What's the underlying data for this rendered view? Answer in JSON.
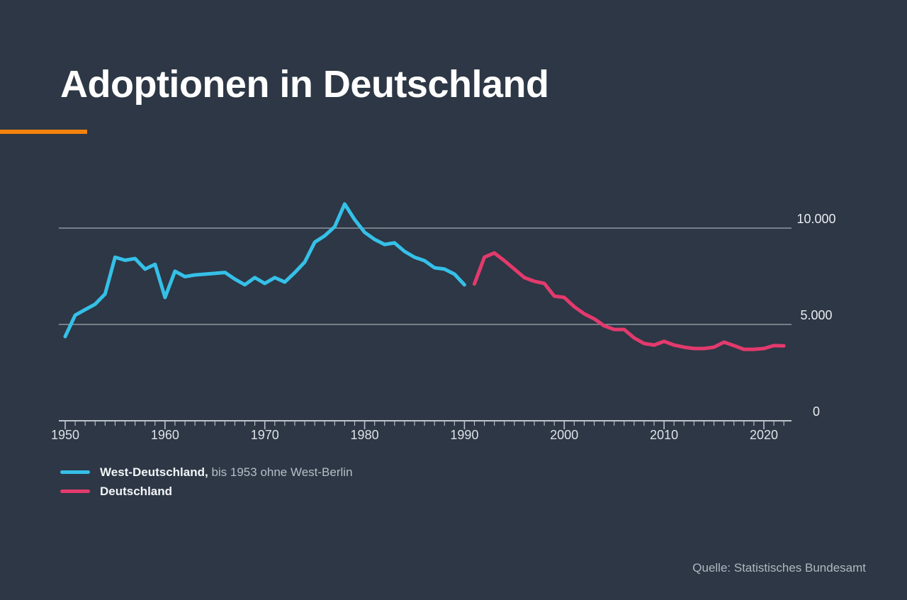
{
  "header": {
    "title": "Adoptionen in Deutschland"
  },
  "legend": {
    "items": [
      {
        "id": "west-deutschland",
        "label_bold": "West-Deutschland,",
        "label_rest": " bis 1953 ohne West-Berlin",
        "color": "#35c0e8"
      },
      {
        "id": "deutschland",
        "label_bold": "Deutschland",
        "label_rest": "",
        "color": "#e33a6d"
      }
    ]
  },
  "footer": {
    "source": "Quelle: Statistisches Bundesamt"
  },
  "colors": {
    "background": "#2d3745",
    "accent_orange": "#f5820d",
    "grid": "#b7bec6",
    "axis": "#bdc4cb",
    "x_label": "#dde2e7",
    "y_label": "#e9edf0"
  },
  "chart_data": {
    "type": "line",
    "title": "Adoptionen in Deutschland",
    "xlabel": "",
    "ylabel": "",
    "grid": "horizontal-only",
    "legend_position": "bottom-left",
    "x_axis": {
      "start": 1950,
      "end": 2022,
      "minor_tick_interval": 1,
      "labels": [
        "1950",
        "1960",
        "1970",
        "1980",
        "1990",
        "2000",
        "2010",
        "2020"
      ]
    },
    "y_axis": {
      "range": [
        0,
        11500
      ],
      "gridlines": [
        {
          "value": 10000,
          "label": "10.000"
        },
        {
          "value": 5000,
          "label": "5.000"
        },
        {
          "value": 0,
          "label": "0"
        }
      ]
    },
    "series": [
      {
        "id": "west-deutschland",
        "name": "West-Deutschland, bis 1953 ohne West-Berlin",
        "color": "#35c0e8",
        "start_year": 1950,
        "values": [
          4370,
          5480,
          5770,
          6050,
          6580,
          8490,
          8330,
          8420,
          7870,
          8120,
          6400,
          7760,
          7480,
          7570,
          7610,
          7650,
          7700,
          7350,
          7060,
          7430,
          7130,
          7430,
          7200,
          7690,
          8240,
          9270,
          9600,
          10070,
          11250,
          10440,
          9780,
          9410,
          9150,
          9230,
          8790,
          8490,
          8310,
          7940,
          7870,
          7610,
          7060
        ]
      },
      {
        "id": "deutschland",
        "name": "Deutschland",
        "color": "#e33a6d",
        "start_year": 1991,
        "values": [
          7100,
          8490,
          8710,
          8310,
          7870,
          7430,
          7240,
          7130,
          6470,
          6400,
          5920,
          5550,
          5290,
          4930,
          4740,
          4740,
          4300,
          4010,
          3930,
          4120,
          3930,
          3820,
          3750,
          3750,
          3820,
          4080,
          3900,
          3710,
          3710,
          3750,
          3900,
          3890
        ]
      }
    ]
  }
}
